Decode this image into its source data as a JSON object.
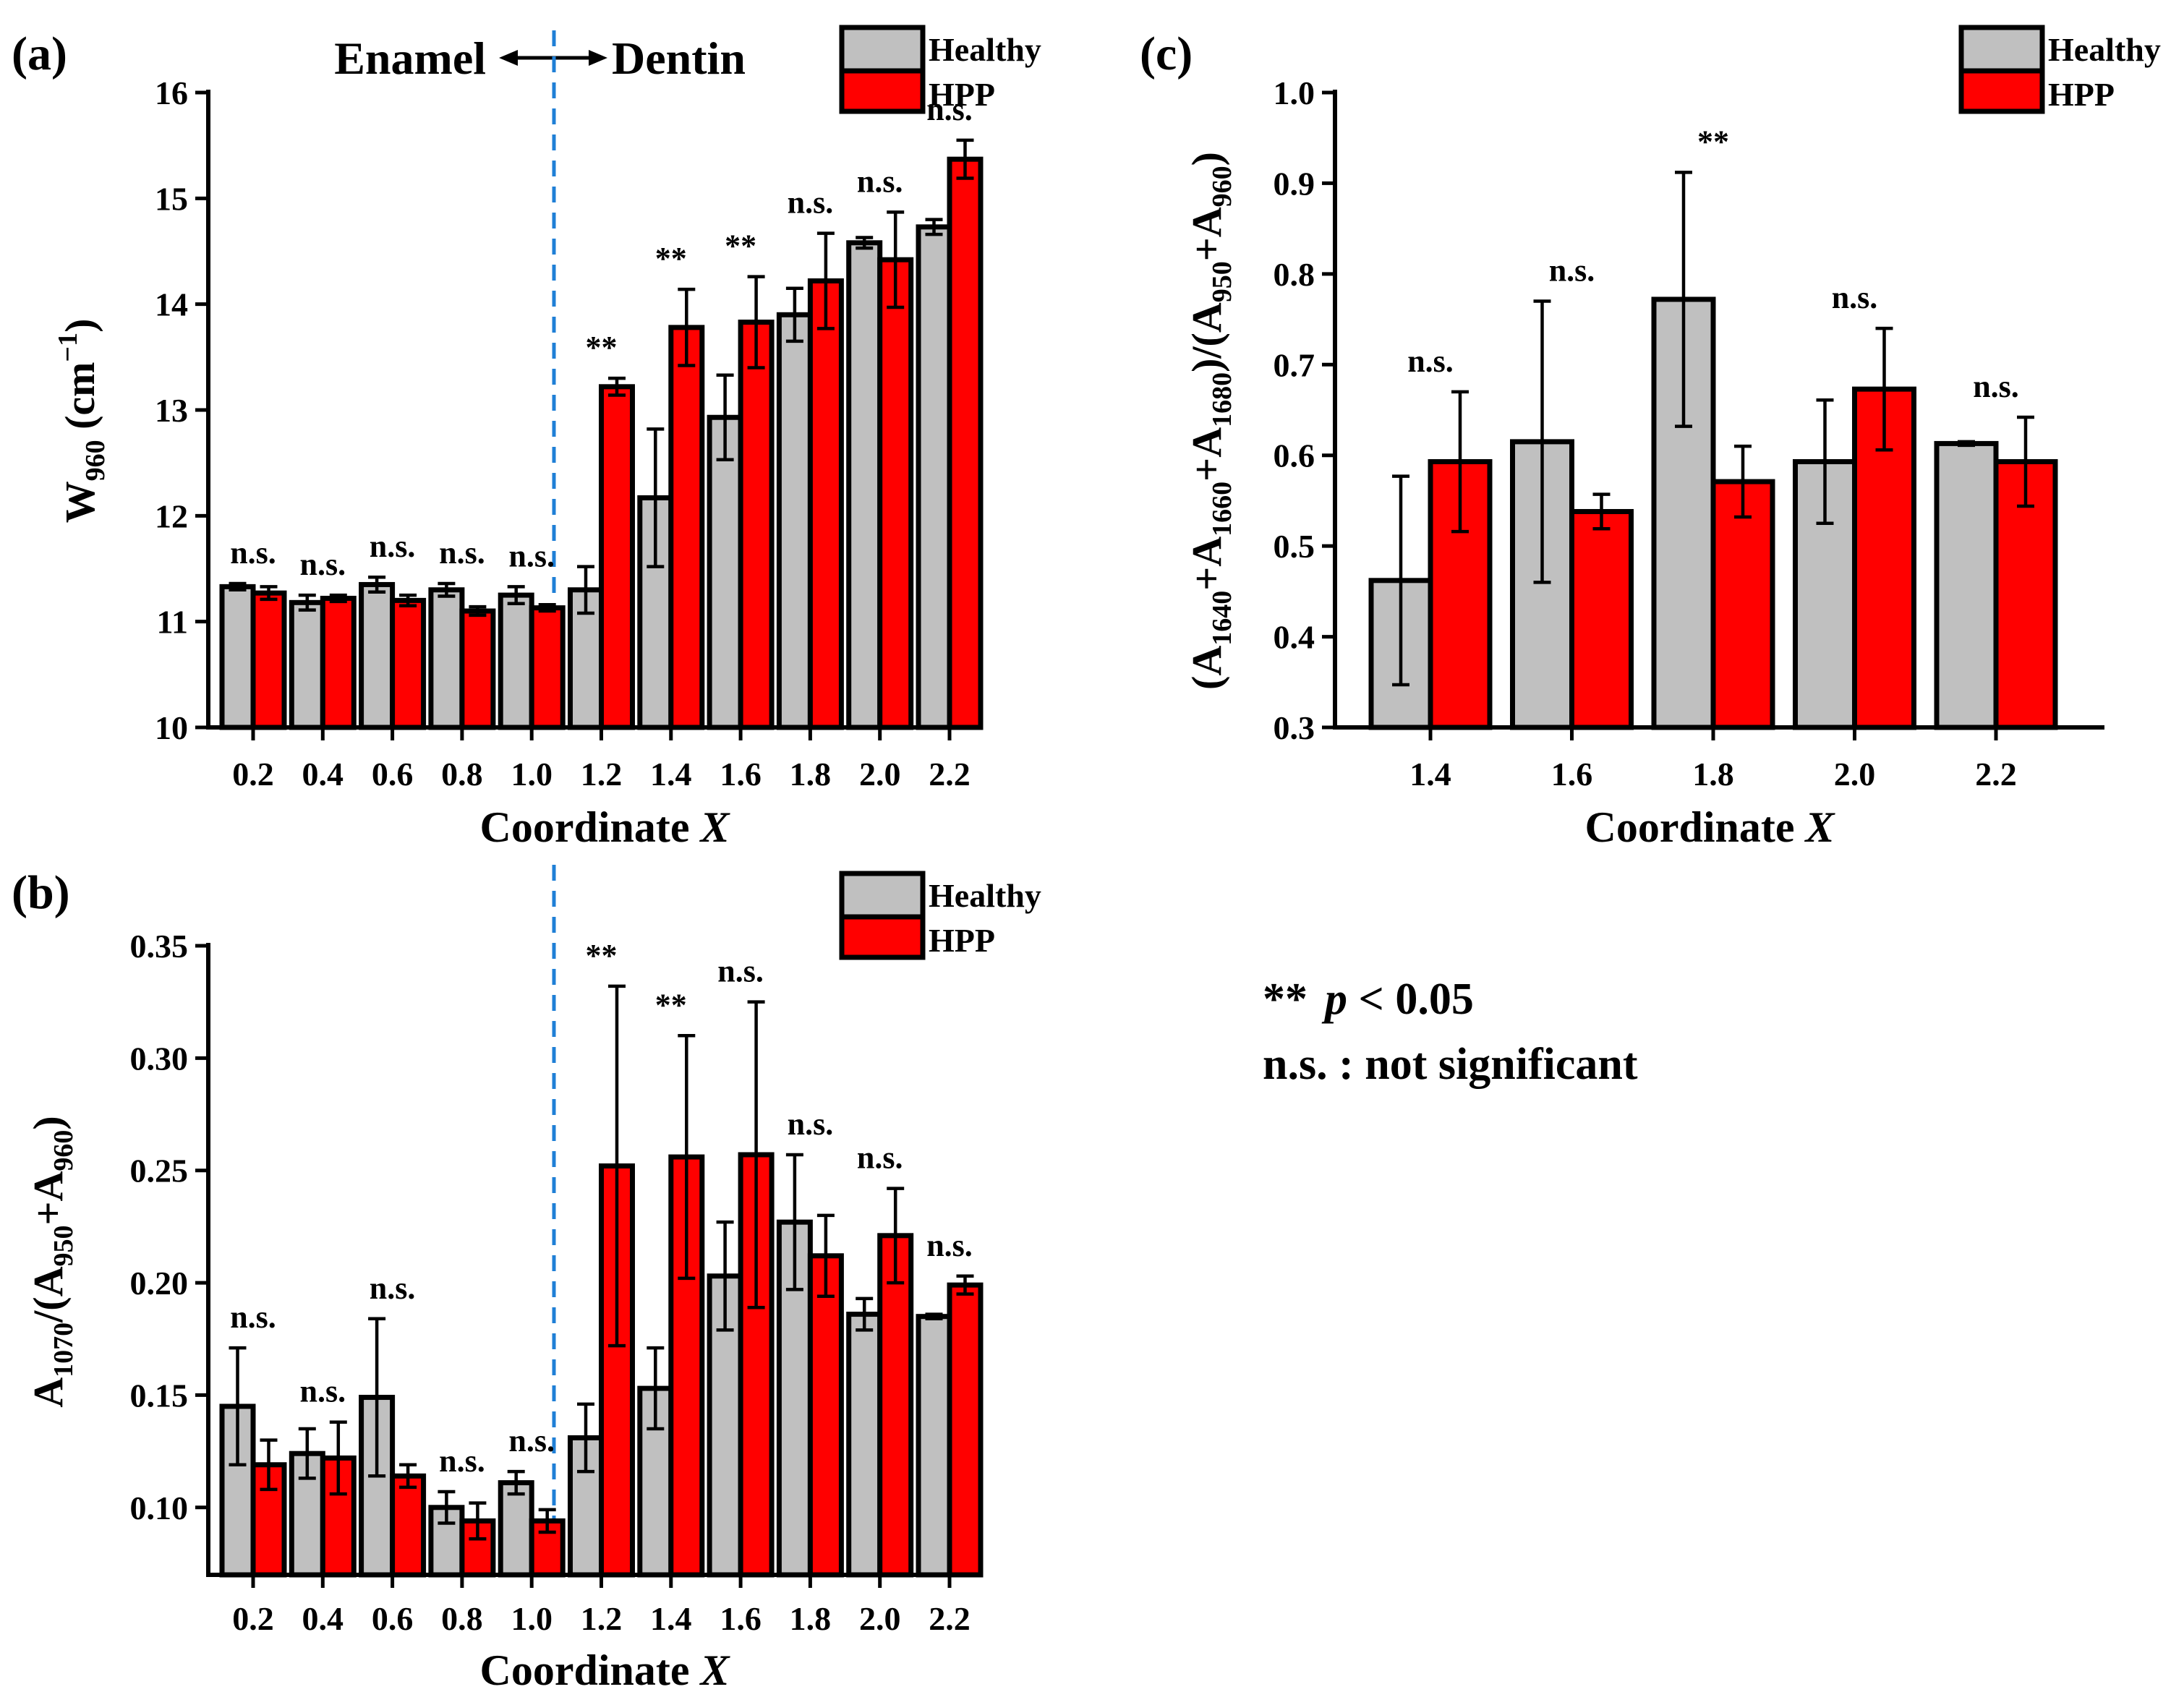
{
  "chart_data": [
    {
      "id": "a",
      "type": "bar",
      "panel_label": "(a)",
      "xlabel": "Coordinate",
      "xlabel_var": "X",
      "ylabel": "W960 (cm-1)",
      "ylim": [
        10,
        16
      ],
      "yticks": [
        "10",
        "11",
        "12",
        "13",
        "14",
        "15",
        "16"
      ],
      "categories": [
        "0.2",
        "0.4",
        "0.6",
        "0.8",
        "1.0",
        "1.2",
        "1.4",
        "1.6",
        "1.8",
        "2.0",
        "2.2"
      ],
      "series": [
        {
          "name": "Healthy",
          "color": "#c0c0c0",
          "values": [
            11.33,
            11.18,
            11.35,
            11.3,
            11.25,
            11.3,
            12.17,
            12.93,
            13.9,
            14.58,
            14.73
          ],
          "errors": [
            0.03,
            0.07,
            0.07,
            0.06,
            0.08,
            0.22,
            0.65,
            0.4,
            0.25,
            0.05,
            0.07
          ]
        },
        {
          "name": "HPP",
          "color": "#ff0000",
          "values": [
            11.27,
            11.22,
            11.2,
            11.1,
            11.13,
            13.22,
            13.78,
            13.83,
            14.22,
            14.42,
            15.37
          ],
          "errors": [
            0.06,
            0.03,
            0.05,
            0.04,
            0.03,
            0.08,
            0.36,
            0.43,
            0.45,
            0.45,
            0.18
          ]
        }
      ],
      "significance": [
        "n.s.",
        "n.s.",
        "n.s.",
        "n.s.",
        "n.s.",
        "**",
        "**",
        "**",
        "n.s.",
        "n.s.",
        "n.s."
      ],
      "regions": {
        "left": "Enamel",
        "right": "Dentin"
      },
      "legend": [
        "Healthy",
        "HPP"
      ]
    },
    {
      "id": "b",
      "type": "bar",
      "panel_label": "(b)",
      "xlabel": "Coordinate",
      "xlabel_var": "X",
      "ylabel": "A1070/(A950+A960)",
      "ylim": [
        0.07,
        0.35
      ],
      "yticks": [
        "0.10",
        "0.15",
        "0.20",
        "0.25",
        "0.30",
        "0.35"
      ],
      "ytick_values": [
        0.1,
        0.15,
        0.2,
        0.25,
        0.3,
        0.35
      ],
      "categories": [
        "0.2",
        "0.4",
        "0.6",
        "0.8",
        "1.0",
        "1.2",
        "1.4",
        "1.6",
        "1.8",
        "2.0",
        "2.2"
      ],
      "series": [
        {
          "name": "Healthy",
          "color": "#c0c0c0",
          "values": [
            0.145,
            0.124,
            0.149,
            0.1,
            0.111,
            0.131,
            0.153,
            0.203,
            0.227,
            0.186,
            0.185
          ],
          "errors": [
            0.026,
            0.011,
            0.035,
            0.007,
            0.005,
            0.015,
            0.018,
            0.024,
            0.03,
            0.007,
            0.001
          ]
        },
        {
          "name": "HPP",
          "color": "#ff0000",
          "values": [
            0.119,
            0.122,
            0.114,
            0.094,
            0.094,
            0.252,
            0.256,
            0.257,
            0.212,
            0.221,
            0.199
          ],
          "errors": [
            0.011,
            0.016,
            0.005,
            0.008,
            0.005,
            0.08,
            0.054,
            0.068,
            0.018,
            0.021,
            0.004
          ]
        }
      ],
      "significance": [
        "n.s.",
        "n.s.",
        "n.s.",
        "n.s.",
        "n.s.",
        "**",
        "**",
        "n.s.",
        "n.s.",
        "n.s.",
        "n.s."
      ],
      "legend": [
        "Healthy",
        "HPP"
      ]
    },
    {
      "id": "c",
      "type": "bar",
      "panel_label": "(c)",
      "xlabel": "Coordinate",
      "xlabel_var": "X",
      "ylabel": "(A1640+A1660+A1680)/(A950+A960)",
      "ylim": [
        0.3,
        1.0
      ],
      "yticks": [
        "0.3",
        "0.4",
        "0.5",
        "0.6",
        "0.7",
        "0.8",
        "0.9",
        "1.0"
      ],
      "categories": [
        "1.4",
        "1.6",
        "1.8",
        "2.0",
        "2.2"
      ],
      "series": [
        {
          "name": "Healthy",
          "color": "#c0c0c0",
          "values": [
            0.462,
            0.615,
            0.772,
            0.593,
            0.613
          ],
          "errors": [
            0.115,
            0.155,
            0.14,
            0.068,
            0.002
          ]
        },
        {
          "name": "HPP",
          "color": "#ff0000",
          "values": [
            0.593,
            0.538,
            0.571,
            0.673,
            0.593
          ],
          "errors": [
            0.077,
            0.019,
            0.039,
            0.067,
            0.049
          ]
        }
      ],
      "significance": [
        "n.s.",
        "n.s.",
        "**",
        "n.s.",
        "n.s."
      ],
      "legend": [
        "Healthy",
        "HPP"
      ]
    }
  ],
  "notes": {
    "significant": "**",
    "p_symbol": "p",
    "p_rule": "< 0.05",
    "not_significant": "n.s. : not significant"
  }
}
